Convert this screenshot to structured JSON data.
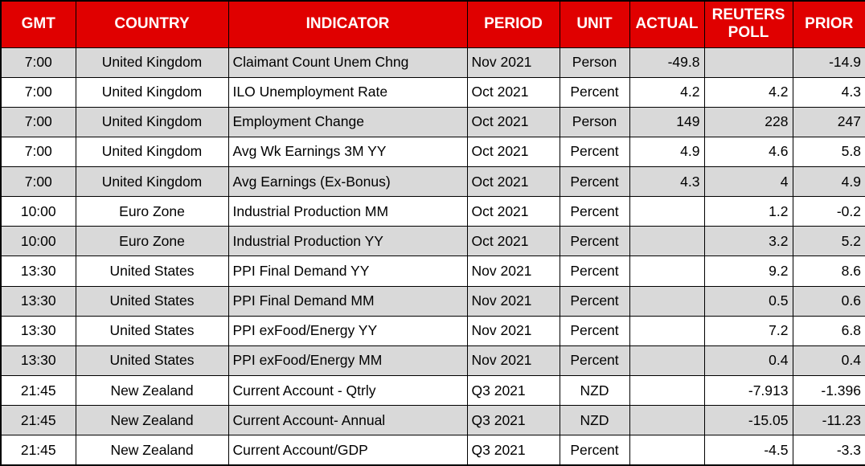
{
  "table": {
    "columns": [
      {
        "key": "gmt",
        "label": "GMT",
        "align": "center"
      },
      {
        "key": "country",
        "label": "COUNTRY",
        "align": "center"
      },
      {
        "key": "indicator",
        "label": "INDICATOR",
        "align": "left"
      },
      {
        "key": "period",
        "label": "PERIOD",
        "align": "left"
      },
      {
        "key": "unit",
        "label": "UNIT",
        "align": "center"
      },
      {
        "key": "actual",
        "label": "ACTUAL",
        "align": "right"
      },
      {
        "key": "poll",
        "label": "REUTERS POLL",
        "align": "right"
      },
      {
        "key": "prior",
        "label": "PRIOR",
        "align": "right"
      }
    ],
    "rows": [
      {
        "gmt": "7:00",
        "country": "United Kingdom",
        "indicator": "Claimant Count Unem Chng",
        "period": "Nov 2021",
        "unit": "Person",
        "actual": "-49.8",
        "poll": "",
        "prior": "-14.9"
      },
      {
        "gmt": "7:00",
        "country": "United Kingdom",
        "indicator": "ILO Unemployment Rate",
        "period": "Oct 2021",
        "unit": "Percent",
        "actual": "4.2",
        "poll": "4.2",
        "prior": "4.3"
      },
      {
        "gmt": "7:00",
        "country": "United Kingdom",
        "indicator": "Employment Change",
        "period": "Oct 2021",
        "unit": "Person",
        "actual": "149",
        "poll": "228",
        "prior": "247"
      },
      {
        "gmt": "7:00",
        "country": "United Kingdom",
        "indicator": "Avg Wk Earnings 3M YY",
        "period": "Oct 2021",
        "unit": "Percent",
        "actual": "4.9",
        "poll": "4.6",
        "prior": "5.8"
      },
      {
        "gmt": "7:00",
        "country": "United Kingdom",
        "indicator": "Avg Earnings (Ex-Bonus)",
        "period": "Oct 2021",
        "unit": "Percent",
        "actual": "4.3",
        "poll": "4",
        "prior": "4.9"
      },
      {
        "gmt": "10:00",
        "country": "Euro Zone",
        "indicator": "Industrial Production MM",
        "period": "Oct 2021",
        "unit": "Percent",
        "actual": "",
        "poll": "1.2",
        "prior": "-0.2"
      },
      {
        "gmt": "10:00",
        "country": "Euro Zone",
        "indicator": "Industrial Production YY",
        "period": "Oct 2021",
        "unit": "Percent",
        "actual": "",
        "poll": "3.2",
        "prior": "5.2"
      },
      {
        "gmt": "13:30",
        "country": "United States",
        "indicator": "PPI Final Demand YY",
        "period": "Nov 2021",
        "unit": "Percent",
        "actual": "",
        "poll": "9.2",
        "prior": "8.6"
      },
      {
        "gmt": "13:30",
        "country": "United States",
        "indicator": "PPI Final Demand MM",
        "period": "Nov 2021",
        "unit": "Percent",
        "actual": "",
        "poll": "0.5",
        "prior": "0.6"
      },
      {
        "gmt": "13:30",
        "country": "United States",
        "indicator": "PPI exFood/Energy YY",
        "period": "Nov 2021",
        "unit": "Percent",
        "actual": "",
        "poll": "7.2",
        "prior": "6.8"
      },
      {
        "gmt": "13:30",
        "country": "United States",
        "indicator": "PPI exFood/Energy MM",
        "period": "Nov 2021",
        "unit": "Percent",
        "actual": "",
        "poll": "0.4",
        "prior": "0.4"
      },
      {
        "gmt": "21:45",
        "country": "New Zealand",
        "indicator": "Current Account - Qtrly",
        "period": "Q3 2021",
        "unit": "NZD",
        "actual": "",
        "poll": "-7.913",
        "prior": "-1.396"
      },
      {
        "gmt": "21:45",
        "country": "New Zealand",
        "indicator": "Current Account- Annual",
        "period": "Q3 2021",
        "unit": "NZD",
        "actual": "",
        "poll": "-15.05",
        "prior": "-11.23"
      },
      {
        "gmt": "21:45",
        "country": "New Zealand",
        "indicator": "Current Account/GDP",
        "period": "Q3 2021",
        "unit": "Percent",
        "actual": "",
        "poll": "-4.5",
        "prior": "-3.3"
      }
    ],
    "striping": "odd-rows-gray"
  },
  "colors": {
    "header_bg": "#e00000",
    "header_text": "#ffffff",
    "row_alt_bg": "#d9d9d9",
    "row_plain_bg": "#ffffff",
    "border": "#000000",
    "body_text": "#000000"
  }
}
